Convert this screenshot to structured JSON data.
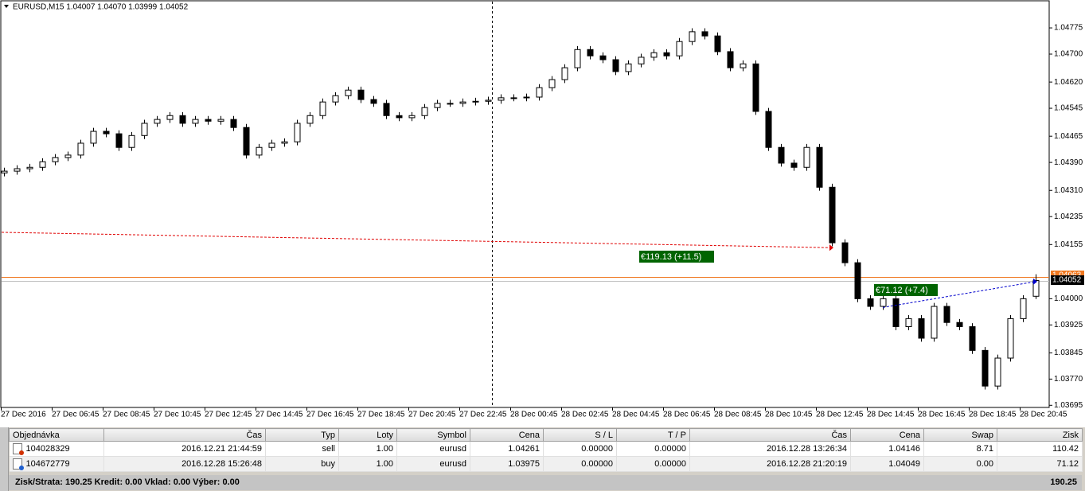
{
  "chart_data": {
    "type": "candlestick",
    "title": "EURUSD,M15  1.04007 1.04070 1.03999 1.04052",
    "x_labels": [
      "27 Dec 2016",
      "27 Dec 06:45",
      "27 Dec 08:45",
      "27 Dec 10:45",
      "27 Dec 12:45",
      "27 Dec 14:45",
      "27 Dec 16:45",
      "27 Dec 18:45",
      "27 Dec 20:45",
      "27 Dec 22:45",
      "28 Dec 00:45",
      "28 Dec 02:45",
      "28 Dec 04:45",
      "28 Dec 06:45",
      "28 Dec 08:45",
      "28 Dec 10:45",
      "28 Dec 12:45",
      "28 Dec 14:45",
      "28 Dec 16:45",
      "28 Dec 18:45",
      "28 Dec 20:45"
    ],
    "ylim": [
      1.03682,
      1.04848
    ],
    "yticks": [
      1.04775,
      {
        "value": 1.047,
        "label": "1.04700"
      },
      {
        "value": 1.0462,
        "label": "1.04620"
      },
      1.04545,
      1.04465,
      {
        "value": 1.0439,
        "label": "1.04390"
      },
      {
        "value": 1.0431,
        "label": "1.04310"
      },
      1.04235,
      1.04155,
      {
        "value": 1.04,
        "label": "1.04000"
      },
      1.03925,
      1.03845,
      {
        "value": 1.0377,
        "label": "1.03770"
      },
      1.03695
    ],
    "bull_color": "#ffffff",
    "bear_color": "#000000",
    "candles": {
      "open": [
        1.0436,
        1.04365,
        1.04372,
        1.04376,
        1.04392,
        1.04404,
        1.04411,
        1.04445,
        1.04479,
        1.04472,
        1.04433,
        1.04467,
        1.04502,
        1.04513,
        1.04524,
        1.04502,
        1.04513,
        1.04508,
        1.04513,
        1.0449,
        1.04411,
        1.04433,
        1.04445,
        1.04449,
        1.04502,
        1.04524,
        1.04563,
        1.04581,
        1.04597,
        1.0457,
        1.04559,
        1.04524,
        1.04518,
        1.04524,
        1.04547,
        1.04559,
        1.04559,
        1.04563,
        1.04565,
        1.04568,
        1.04575,
        1.04575,
        1.04577,
        1.04604,
        1.04627,
        1.04661,
        1.04713,
        1.04695,
        1.04684,
        1.0465,
        1.04672,
        1.04691,
        1.04704,
        1.04695,
        1.04736,
        1.04764,
        1.04752,
        1.04707,
        1.04661,
        1.04672,
        1.04536,
        1.04433,
        1.04388,
        1.04376,
        1.04433,
        1.04319,
        1.0416,
        1.04103,
        1.04,
        1.03978,
        1.04,
        1.0392,
        1.03943,
        1.03887,
        1.03978,
        1.03932,
        1.0392,
        1.03852,
        1.0375,
        1.0383,
        1.03943,
        1.04007
      ],
      "high": [
        1.04375,
        1.04382,
        1.04386,
        1.04402,
        1.04414,
        1.04421,
        1.04455,
        1.04489,
        1.04489,
        1.04482,
        1.04477,
        1.04512,
        1.04523,
        1.04534,
        1.04534,
        1.04523,
        1.04523,
        1.04523,
        1.04523,
        1.045,
        1.04443,
        1.04455,
        1.04459,
        1.04512,
        1.04534,
        1.04573,
        1.04591,
        1.04607,
        1.04607,
        1.0458,
        1.04569,
        1.04534,
        1.04534,
        1.04557,
        1.04569,
        1.04569,
        1.04573,
        1.04575,
        1.04578,
        1.04585,
        1.04585,
        1.04587,
        1.04614,
        1.04637,
        1.04671,
        1.04723,
        1.04723,
        1.04705,
        1.04694,
        1.04682,
        1.04701,
        1.04714,
        1.04714,
        1.04746,
        1.04774,
        1.04774,
        1.04762,
        1.04717,
        1.04682,
        1.04682,
        1.04546,
        1.04443,
        1.04398,
        1.04443,
        1.04443,
        1.04329,
        1.0417,
        1.04113,
        1.0401,
        1.0401,
        1.0401,
        1.03953,
        1.03953,
        1.03988,
        1.03988,
        1.03942,
        1.0393,
        1.03862,
        1.0384,
        1.03953,
        1.0401,
        1.0407
      ],
      "low": [
        1.0435,
        1.04355,
        1.04362,
        1.04366,
        1.04382,
        1.04394,
        1.04401,
        1.04435,
        1.04462,
        1.04423,
        1.04423,
        1.04457,
        1.04492,
        1.04503,
        1.04492,
        1.04492,
        1.04498,
        1.04498,
        1.0448,
        1.04401,
        1.04401,
        1.04423,
        1.04435,
        1.04439,
        1.04492,
        1.04514,
        1.04553,
        1.04571,
        1.0456,
        1.04549,
        1.04514,
        1.04508,
        1.04508,
        1.04514,
        1.04537,
        1.04549,
        1.04549,
        1.04553,
        1.04555,
        1.04558,
        1.04565,
        1.04565,
        1.04567,
        1.04594,
        1.04617,
        1.04651,
        1.04685,
        1.04674,
        1.0464,
        1.0464,
        1.04662,
        1.04681,
        1.04685,
        1.04685,
        1.04726,
        1.04742,
        1.04697,
        1.04651,
        1.04651,
        1.04526,
        1.04423,
        1.04378,
        1.04366,
        1.04366,
        1.04309,
        1.0415,
        1.04093,
        1.0399,
        1.03968,
        1.03968,
        1.0391,
        1.0391,
        1.03877,
        1.03877,
        1.03922,
        1.0391,
        1.03842,
        1.0374,
        1.0374,
        1.0382,
        1.03933,
        1.03999
      ],
      "close": [
        1.04365,
        1.04372,
        1.04376,
        1.04392,
        1.04404,
        1.04411,
        1.04445,
        1.04479,
        1.04472,
        1.04433,
        1.04467,
        1.04502,
        1.04513,
        1.04524,
        1.04502,
        1.04513,
        1.04508,
        1.04513,
        1.0449,
        1.04411,
        1.04433,
        1.04445,
        1.04449,
        1.04502,
        1.04524,
        1.04563,
        1.04581,
        1.04597,
        1.0457,
        1.04559,
        1.04524,
        1.04518,
        1.04524,
        1.04547,
        1.04559,
        1.04559,
        1.04563,
        1.04565,
        1.04568,
        1.04575,
        1.04575,
        1.04577,
        1.04604,
        1.04627,
        1.04661,
        1.04713,
        1.04695,
        1.04684,
        1.0465,
        1.04672,
        1.04691,
        1.04704,
        1.04695,
        1.04736,
        1.04764,
        1.04752,
        1.04707,
        1.04661,
        1.04672,
        1.04536,
        1.04433,
        1.04388,
        1.04376,
        1.04433,
        1.04319,
        1.0416,
        1.04103,
        1.04,
        1.03978,
        1.04,
        1.0392,
        1.03943,
        1.03887,
        1.03978,
        1.03932,
        1.0392,
        1.03852,
        1.0375,
        1.0383,
        1.03943,
        1.04,
        1.04052
      ]
    },
    "ask": {
      "value": 1.04063,
      "color": "#f07820"
    },
    "bid": {
      "value": 1.04052,
      "color": "#c0c0c0"
    },
    "trades": [
      {
        "line": [
          1.0419,
          1.04146
        ],
        "color": "#e00000",
        "label": "€119.13 (+11.5)"
      },
      {
        "line": [
          1.03975,
          1.04049
        ],
        "color": "#0000cc",
        "label": "€71.12 (+7.4)"
      }
    ]
  },
  "table": {
    "headers": [
      "Objednávka",
      "Čas",
      "Typ",
      "Loty",
      "Symbol",
      "Cena",
      "S / L",
      "T / P",
      "Čas",
      "Cena",
      "Swap",
      "Zisk"
    ],
    "rows": [
      [
        "104028329",
        "2016.12.21 21:44:59",
        "sell",
        "1.00",
        "eurusd",
        "1.04261",
        "0.00000",
        "0.00000",
        "2016.12.28 13:26:34",
        "1.04146",
        "8.71",
        "110.42"
      ],
      [
        "104672779",
        "2016.12.28 15:26:48",
        "buy",
        "1.00",
        "eurusd",
        "1.03975",
        "0.00000",
        "0.00000",
        "2016.12.28 21:20:19",
        "1.04049",
        "0.00",
        "71.12"
      ]
    ],
    "footer": {
      "summary": "Zisk/Strata: 190.25  Kredit: 0.00  Vklad: 0.00  Výber: 0.00",
      "total": "190.25"
    }
  }
}
